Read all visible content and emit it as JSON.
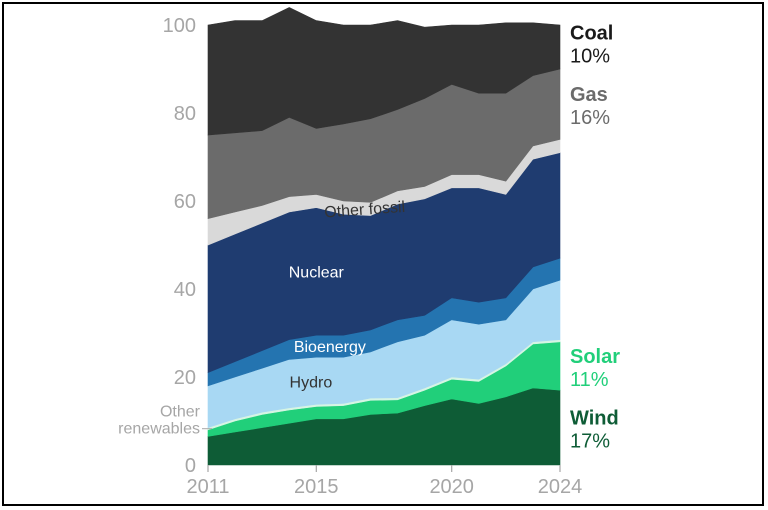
{
  "chart_data": {
    "type": "area",
    "stacked": true,
    "x": [
      2011,
      2012,
      2013,
      2014,
      2015,
      2016,
      2017,
      2018,
      2019,
      2020,
      2021,
      2022,
      2023,
      2024
    ],
    "x_tick_labels": [
      "2011",
      "2015",
      "2020",
      "2024"
    ],
    "y_tick_labels": [
      "0",
      "20",
      "40",
      "60",
      "80",
      "100"
    ],
    "ylim": [
      0,
      100
    ],
    "series": [
      {
        "name": "Wind",
        "color": "#0e5c36",
        "values": [
          6.5,
          7.5,
          8.5,
          9.5,
          10.5,
          10.5,
          11.5,
          11.8,
          13.5,
          15.0,
          14.0,
          15.5,
          17.5,
          17.0
        ]
      },
      {
        "name": "Solar",
        "color": "#21cf7a",
        "values": [
          1.5,
          2.5,
          3.0,
          3.0,
          2.8,
          3.0,
          3.2,
          3.0,
          3.5,
          4.5,
          5.0,
          7.0,
          10.0,
          11.0
        ]
      },
      {
        "name": "Other renewables",
        "color": "#d6f5e4",
        "values": [
          0.5,
          0.5,
          0.5,
          0.5,
          0.5,
          0.5,
          0.5,
          0.5,
          0.5,
          0.5,
          0.5,
          0.5,
          0.5,
          0.5
        ]
      },
      {
        "name": "Hydro",
        "color": "#a8d8f3",
        "values": [
          9.5,
          9.5,
          10.0,
          11.0,
          10.7,
          10.5,
          10.5,
          12.7,
          12.0,
          13.0,
          12.5,
          10.0,
          12.0,
          13.5
        ]
      },
      {
        "name": "Bioenergy",
        "color": "#2474b0",
        "values": [
          3.0,
          3.5,
          4.0,
          4.5,
          5.0,
          5.0,
          5.0,
          5.0,
          4.5,
          5.0,
          5.0,
          5.0,
          5.0,
          5.0
        ]
      },
      {
        "name": "Nuclear",
        "color": "#1f3c70",
        "values": [
          29.0,
          29.0,
          29.0,
          29.0,
          29.0,
          27.5,
          26.0,
          26.3,
          26.5,
          25.0,
          26.0,
          23.5,
          24.5,
          24.0
        ]
      },
      {
        "name": "Other fossil",
        "color": "#d9d9d9",
        "values": [
          6.0,
          5.0,
          4.0,
          3.5,
          3.0,
          3.0,
          3.0,
          3.0,
          2.8,
          3.0,
          3.0,
          3.0,
          3.0,
          3.0
        ]
      },
      {
        "name": "Gas",
        "color": "#6b6b6b",
        "values": [
          19.0,
          18.0,
          17.0,
          18.0,
          15.0,
          17.5,
          19.0,
          18.5,
          20.0,
          20.5,
          18.5,
          20.0,
          16.0,
          16.0
        ]
      },
      {
        "name": "Coal",
        "color": "#333333",
        "values": [
          25.0,
          25.5,
          25.0,
          25.0,
          24.5,
          22.5,
          21.3,
          20.2,
          16.2,
          13.5,
          15.5,
          16.0,
          12.0,
          10.0
        ]
      }
    ],
    "inline_labels": [
      {
        "series": "Other fossil",
        "text": "Other fossil",
        "color": "#333333"
      },
      {
        "series": "Nuclear",
        "text": "Nuclear",
        "color": "#ffffff"
      },
      {
        "series": "Bioenergy",
        "text": "Bioenergy",
        "color": "#ffffff"
      },
      {
        "series": "Hydro",
        "text": "Hydro",
        "color": "#333333"
      }
    ],
    "left_label": {
      "series": "Other renewables",
      "line1": "Other",
      "line2": "renewables",
      "color": "#a6a6a6"
    },
    "end_labels": [
      {
        "series": "Coal",
        "name": "Coal",
        "pct": "10%",
        "color": "#1a1a1a"
      },
      {
        "series": "Gas",
        "name": "Gas",
        "pct": "16%",
        "color": "#6b6b6b"
      },
      {
        "series": "Solar",
        "name": "Solar",
        "pct": "11%",
        "color": "#21cf7a"
      },
      {
        "series": "Wind",
        "name": "Wind",
        "pct": "17%",
        "color": "#0e5c36"
      }
    ]
  }
}
